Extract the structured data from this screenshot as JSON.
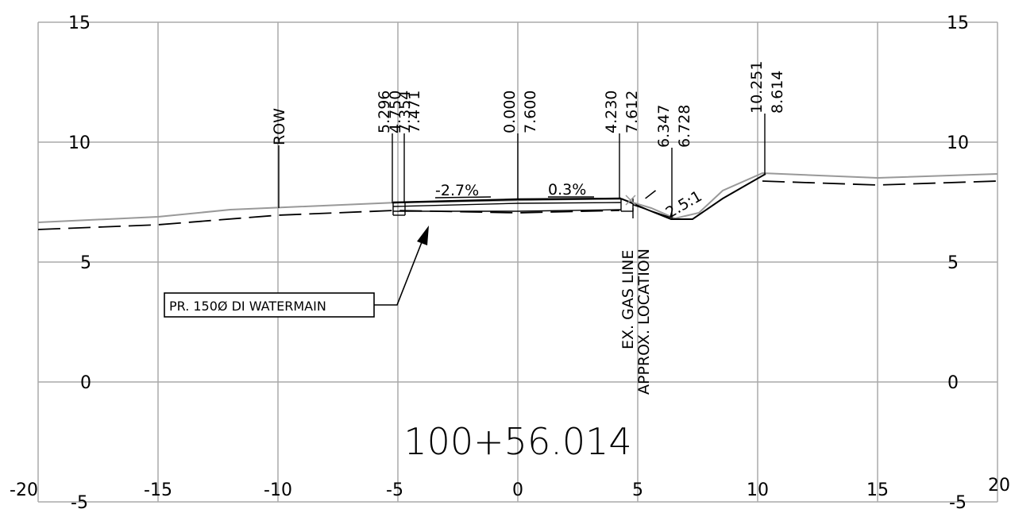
{
  "station": "100+56.014",
  "x_ticks": [
    "-20",
    "-15",
    "-10",
    "-5",
    "0",
    "5",
    "10",
    "15",
    "20"
  ],
  "y_ticks_left": [
    "15",
    "10",
    "5",
    "0",
    "-5"
  ],
  "y_ticks_right": [
    "15",
    "10",
    "5",
    "0",
    "-5"
  ],
  "grade_labels": [
    "-2.7%",
    "0.3%"
  ],
  "side_slope": "2.5:1",
  "row_label": "ROW",
  "callouts": [
    {
      "offset": "5.296",
      "elev": "7.354"
    },
    {
      "offset": "4.750",
      "elev": "7.471"
    },
    {
      "offset": "0.000",
      "elev": "7.600"
    },
    {
      "offset": "4.230",
      "elev": "7.612"
    },
    {
      "offset": "6.347",
      "elev": "6.728"
    },
    {
      "offset": "10.251",
      "elev": "8.614"
    }
  ],
  "gas_line": {
    "line1": "EX. GAS LINE",
    "line2": "APPROX. LOCATION"
  },
  "watermain_label": "PR. 150Ø DI WATERMAIN",
  "colors": {
    "grid": "#aaaaaa",
    "ink": "#000000",
    "existing_ground": "#999999"
  }
}
